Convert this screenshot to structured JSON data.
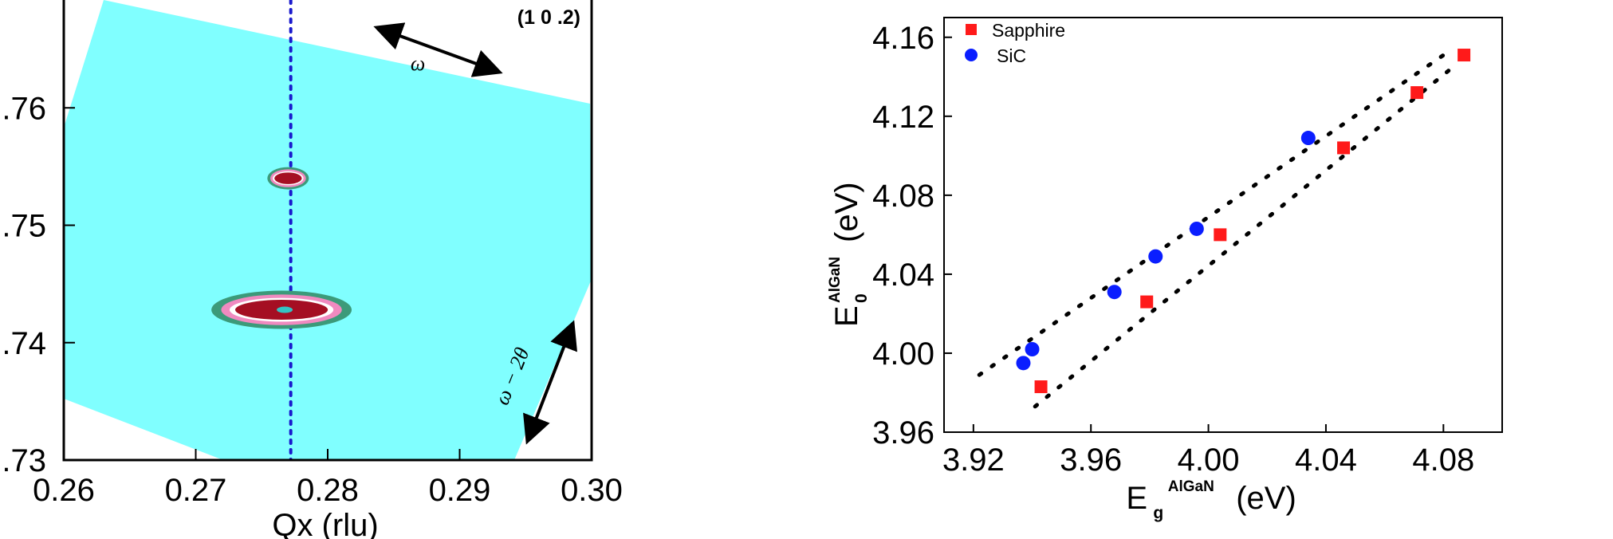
{
  "chart_data": [
    {
      "type": "heatmap",
      "annotation": "(1 0 .2)",
      "xlabel": "Qx  (rlu)",
      "xlim": [
        0.26,
        0.3
      ],
      "x_ticks": [
        "0.26",
        "0.27",
        "0.28",
        "0.29",
        "0.30"
      ],
      "ylim": [
        0.73,
        0.77
      ],
      "y_ticks": [
        ".73",
        ".74",
        ".75",
        ".76"
      ],
      "scan_labels": {
        "omega": "ω",
        "omega_2theta": "ω − 2θ"
      },
      "guide_line_x": 0.2772,
      "peaks": [
        {
          "x": 0.277,
          "y": 0.754
        },
        {
          "x": 0.2765,
          "y": 0.7428
        }
      ],
      "colors": {
        "background_region": "#80ffff",
        "guide_line": "#1a1acd",
        "peak_core": "#a50f23"
      }
    },
    {
      "type": "scatter",
      "xlabel": {
        "main": "E",
        "sub": "g",
        "sup": "AlGaN",
        "unit": "(eV)"
      },
      "ylabel": {
        "main": "E",
        "sub": "0",
        "sup": "AlGaN",
        "unit": "(eV)"
      },
      "xlim": [
        3.91,
        4.1
      ],
      "ylim": [
        3.96,
        4.17
      ],
      "x_ticks": [
        "3.92",
        "3.96",
        "4.00",
        "4.04",
        "4.08"
      ],
      "y_ticks": [
        "3.96",
        "4.00",
        "4.04",
        "4.08",
        "4.12",
        "4.16"
      ],
      "legend_position": "top-left",
      "series": [
        {
          "name": "Sapphire",
          "marker": "square",
          "color": "#ff1a1a",
          "x": [
            3.943,
            3.979,
            4.004,
            4.046,
            4.071,
            4.087
          ],
          "y": [
            3.983,
            4.026,
            4.06,
            4.104,
            4.132,
            4.151
          ]
        },
        {
          "name": "SiC",
          "marker": "circle",
          "color": "#0a1eff",
          "x": [
            3.937,
            3.94,
            3.968,
            3.982,
            3.996,
            4.034
          ],
          "y": [
            3.995,
            4.002,
            4.031,
            4.049,
            4.063,
            4.109
          ]
        }
      ],
      "fit_lines": [
        {
          "x": [
            3.922,
            4.082
          ],
          "y": [
            3.989,
            4.153
          ]
        },
        {
          "x": [
            3.941,
            4.085
          ],
          "y": [
            3.973,
            4.147
          ]
        }
      ]
    }
  ]
}
